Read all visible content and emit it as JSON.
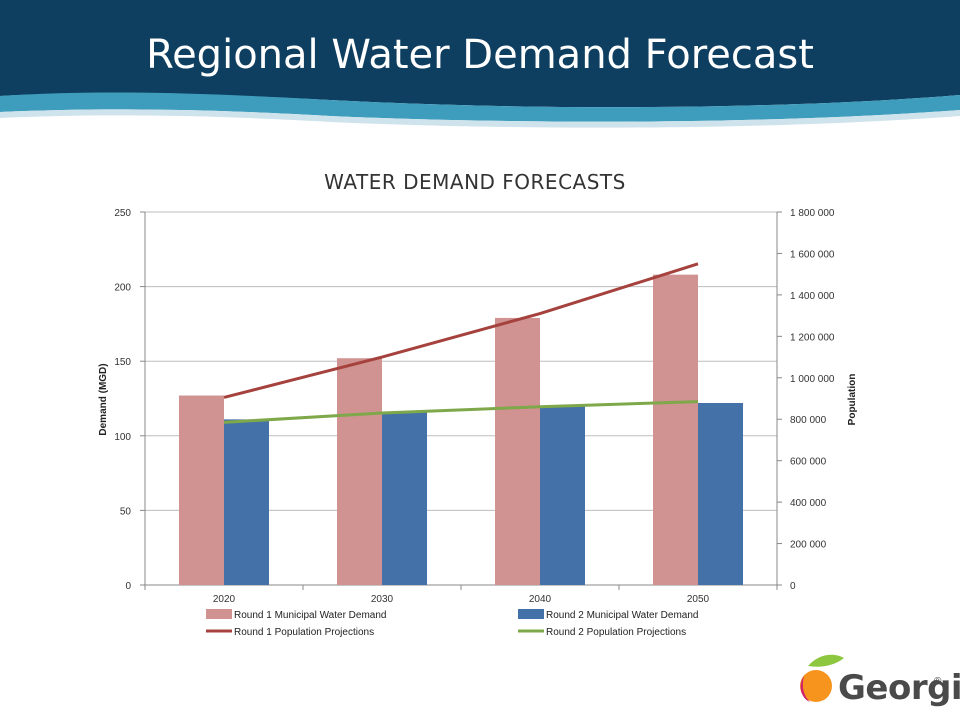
{
  "slide": {
    "title": "Regional Water Demand Forecast"
  },
  "logo": {
    "text": "Georgia",
    "reg": "®"
  },
  "colors": {
    "banner": "#0f3f60",
    "wave": "#3e9dbd",
    "r1_bar": "#d09391",
    "r2_bar": "#4472a8",
    "r1_line": "#a5423e",
    "r2_line": "#7ea84a"
  },
  "chart_data": {
    "type": "bar",
    "title": "WATER DEMAND FORECASTS",
    "categories": [
      "2020",
      "2030",
      "2040",
      "2050"
    ],
    "ylabel": "Demand (MGD)",
    "y2label": "Population",
    "ylim": [
      0,
      250
    ],
    "yticks": [
      "0",
      "50",
      "100",
      "150",
      "200",
      "250"
    ],
    "y2lim": [
      0,
      1800000
    ],
    "y2ticks": [
      "0",
      "200 000",
      "400 000",
      "600 000",
      "800 000",
      "1 000 000",
      "1 200 000",
      "1 400 000",
      "1 600 000",
      "1 800 000"
    ],
    "bar_series": [
      {
        "name": "Round 1 Municipal Water Demand",
        "values": [
          127,
          152,
          179,
          208
        ]
      },
      {
        "name": "Round 2 Municipal Water Demand",
        "values": [
          111,
          116,
          120,
          122
        ]
      }
    ],
    "line_series": [
      {
        "name": "Round 1 Population Projections",
        "axis": "y2",
        "values": [
          905000,
          1100000,
          1310000,
          1550000
        ]
      },
      {
        "name": "Round 2 Population Projections",
        "axis": "y2",
        "values": [
          785000,
          830000,
          860000,
          885000
        ]
      }
    ],
    "legend_position": "bottom",
    "grid": "horizontal"
  }
}
